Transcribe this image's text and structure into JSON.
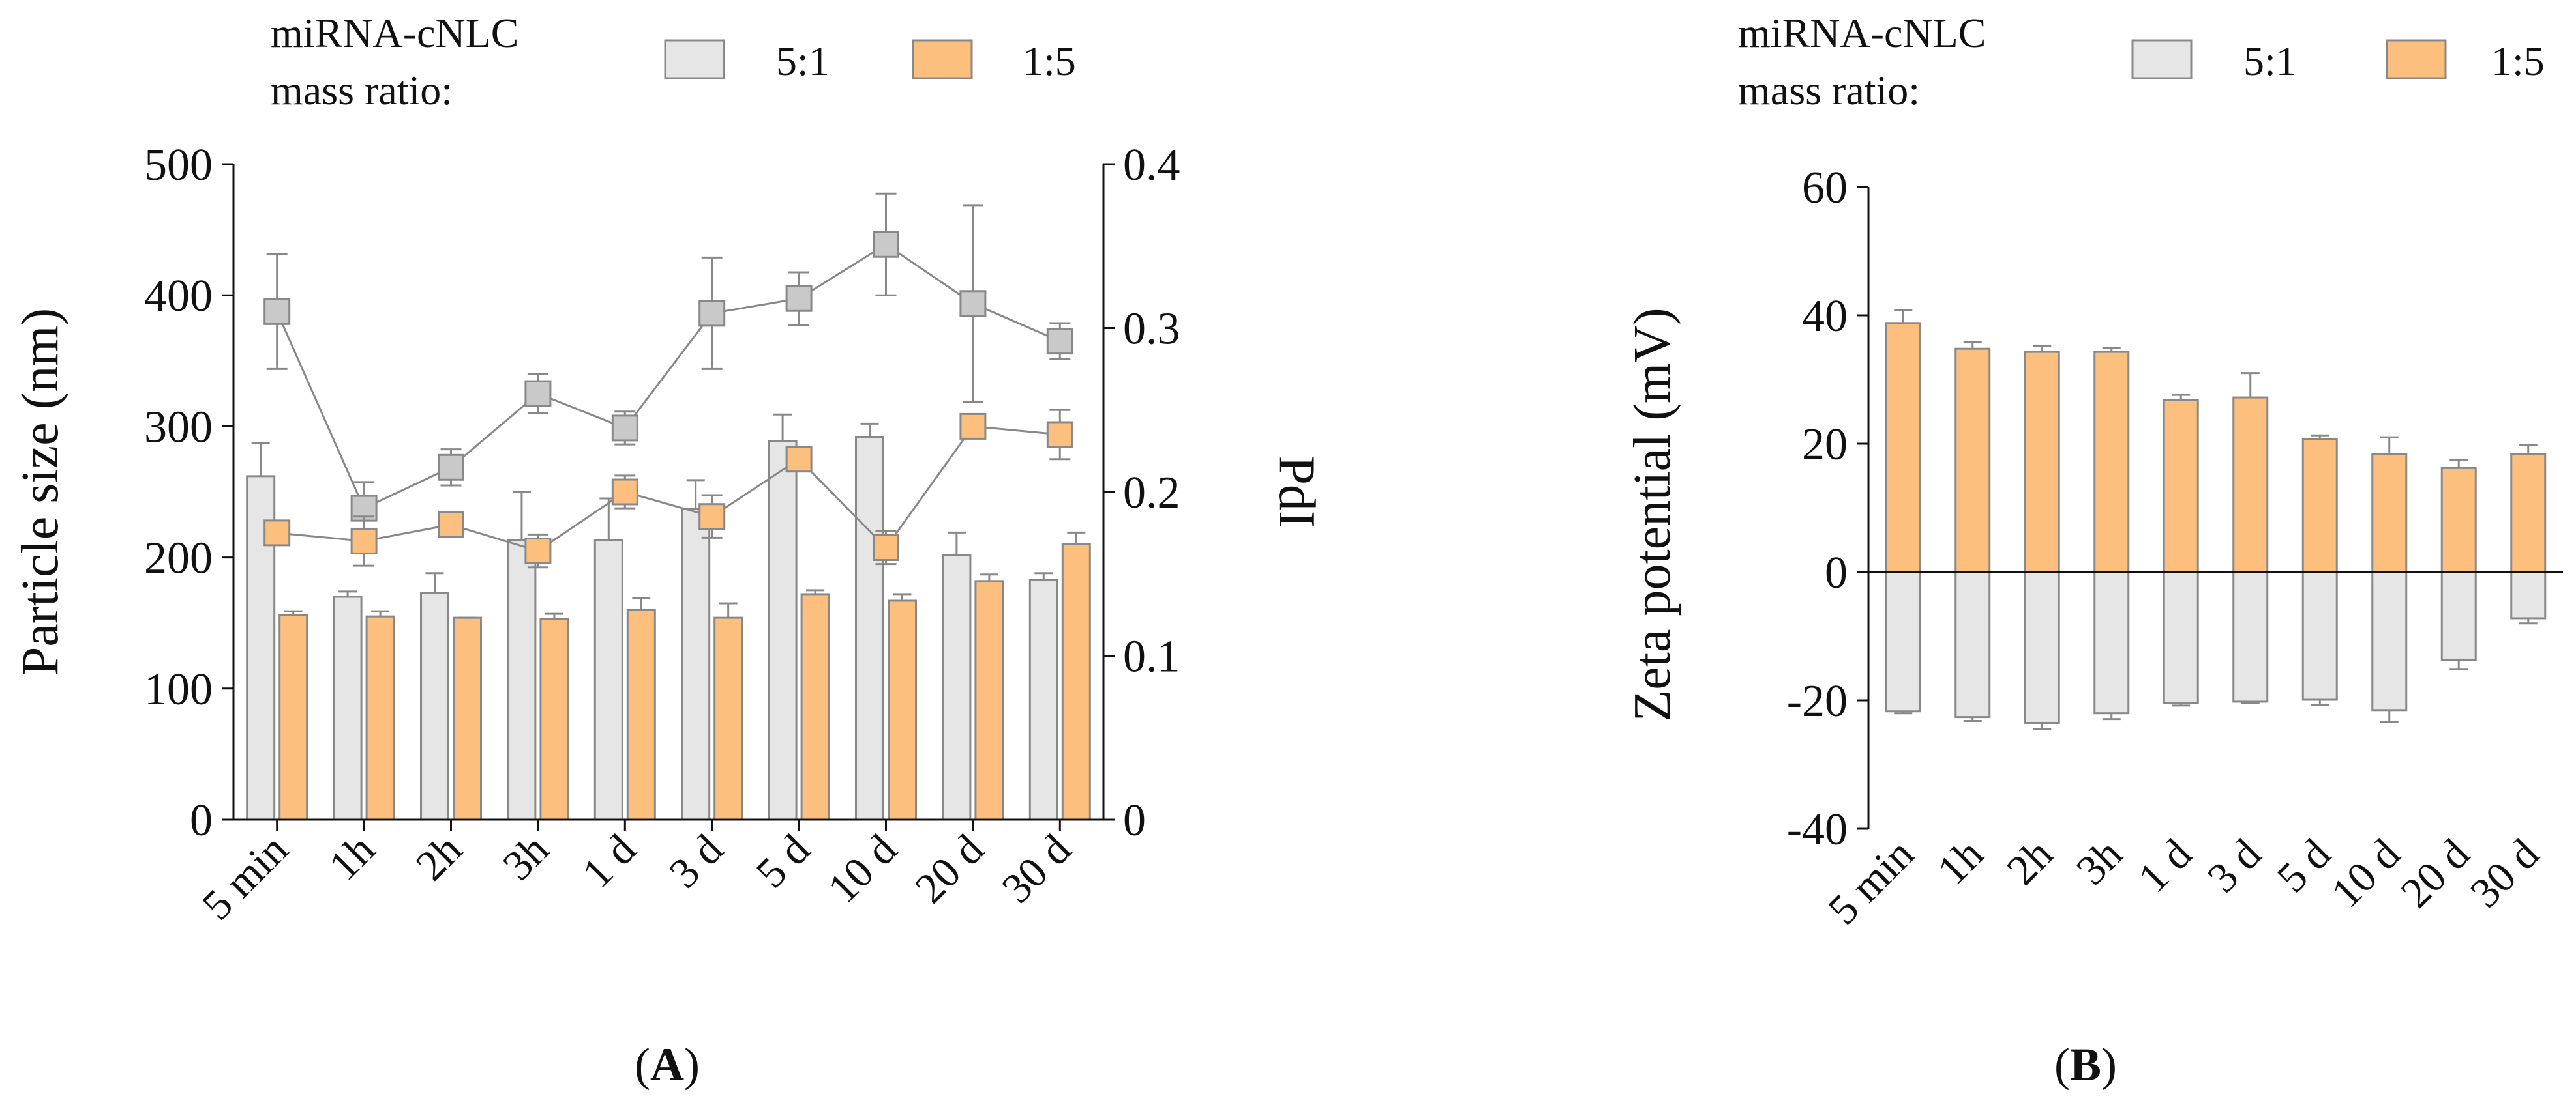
{
  "colors": {
    "ratio_5_1": "#e6e6e6",
    "ratio_1_5": "#fdbf7d",
    "line": "#888888",
    "axis": "#111111"
  },
  "legend": {
    "title_line1": "miRNA-cNLC",
    "title_line2": "mass ratio:",
    "item_5_1": "5:1",
    "item_1_5": "1:5"
  },
  "chart_data": [
    {
      "panel_label": "(A)",
      "panel_letter": "A",
      "type": "bar",
      "categories": [
        "5 min",
        "1h",
        "2h",
        "3h",
        "1 d",
        "3 d",
        "5 d",
        "10 d",
        "20 d",
        "30 d"
      ],
      "ylabel": "Particle size (nm)",
      "y2label": "PdI",
      "ylim": [
        0,
        500
      ],
      "y2lim": [
        0,
        0.4
      ],
      "yticks": [
        "0",
        "100",
        "200",
        "300",
        "400",
        "500"
      ],
      "y2ticks": [
        "0",
        "0.1",
        "0.2",
        "0.3",
        "0.4"
      ],
      "series": [
        {
          "name": "5:1",
          "kind": "bar",
          "axis": "left",
          "values": [
            262,
            170,
            173,
            213,
            213,
            237,
            289,
            292,
            202,
            183
          ],
          "errors": [
            25,
            4,
            15,
            37,
            32,
            22,
            20,
            10,
            17,
            5
          ]
        },
        {
          "name": "1:5",
          "kind": "bar",
          "axis": "left",
          "values": [
            156,
            155,
            154,
            153,
            160,
            154,
            172,
            167,
            182,
            210
          ],
          "errors": [
            3,
            4,
            0,
            4,
            9,
            11,
            3,
            5,
            5,
            9
          ]
        },
        {
          "name": "5:1",
          "kind": "line",
          "axis": "right",
          "values": [
            0.31,
            0.19,
            0.215,
            0.26,
            0.239,
            0.309,
            0.318,
            0.351,
            0.315,
            0.292
          ],
          "errors": [
            0.035,
            0.016,
            0.011,
            0.012,
            0.01,
            0.034,
            0.016,
            0.031,
            0.06,
            0.011
          ]
        },
        {
          "name": "1:5",
          "kind": "line",
          "axis": "right",
          "values": [
            0.175,
            0.17,
            0.18,
            0.164,
            0.2,
            0.185,
            0.22,
            0.166,
            0.24,
            0.235
          ],
          "errors": [
            0,
            0.015,
            0,
            0.01,
            0.01,
            0.013,
            0.004,
            0.01,
            0,
            0.015
          ]
        }
      ]
    },
    {
      "panel_label": "(B)",
      "panel_letter": "B",
      "type": "bar",
      "categories": [
        "5 min",
        "1h",
        "2h",
        "3h",
        "1 d",
        "3 d",
        "5 d",
        "10 d",
        "20 d",
        "30 d"
      ],
      "ylabel": "Zeta potential (mV)",
      "ylim": [
        -40,
        60
      ],
      "yticks": [
        "-40",
        "-20",
        "0",
        "20",
        "40",
        "60"
      ],
      "series": [
        {
          "name": "1:5",
          "values": [
            38.8,
            34.8,
            34.3,
            34.3,
            26.8,
            27.2,
            20.7,
            18.4,
            16.2,
            18.4
          ],
          "errors": [
            2.0,
            1.0,
            0.9,
            0.6,
            0.8,
            3.8,
            0.6,
            2.6,
            1.3,
            1.4
          ]
        },
        {
          "name": "5:1",
          "values": [
            -21.7,
            -22.6,
            -23.5,
            -22.0,
            -20.4,
            -20.2,
            -19.9,
            -21.5,
            -13.7,
            -7.2
          ],
          "errors": [
            0.3,
            0.6,
            1.0,
            0.9,
            0.4,
            0.2,
            0.8,
            1.9,
            1.4,
            0.8
          ]
        }
      ]
    }
  ]
}
